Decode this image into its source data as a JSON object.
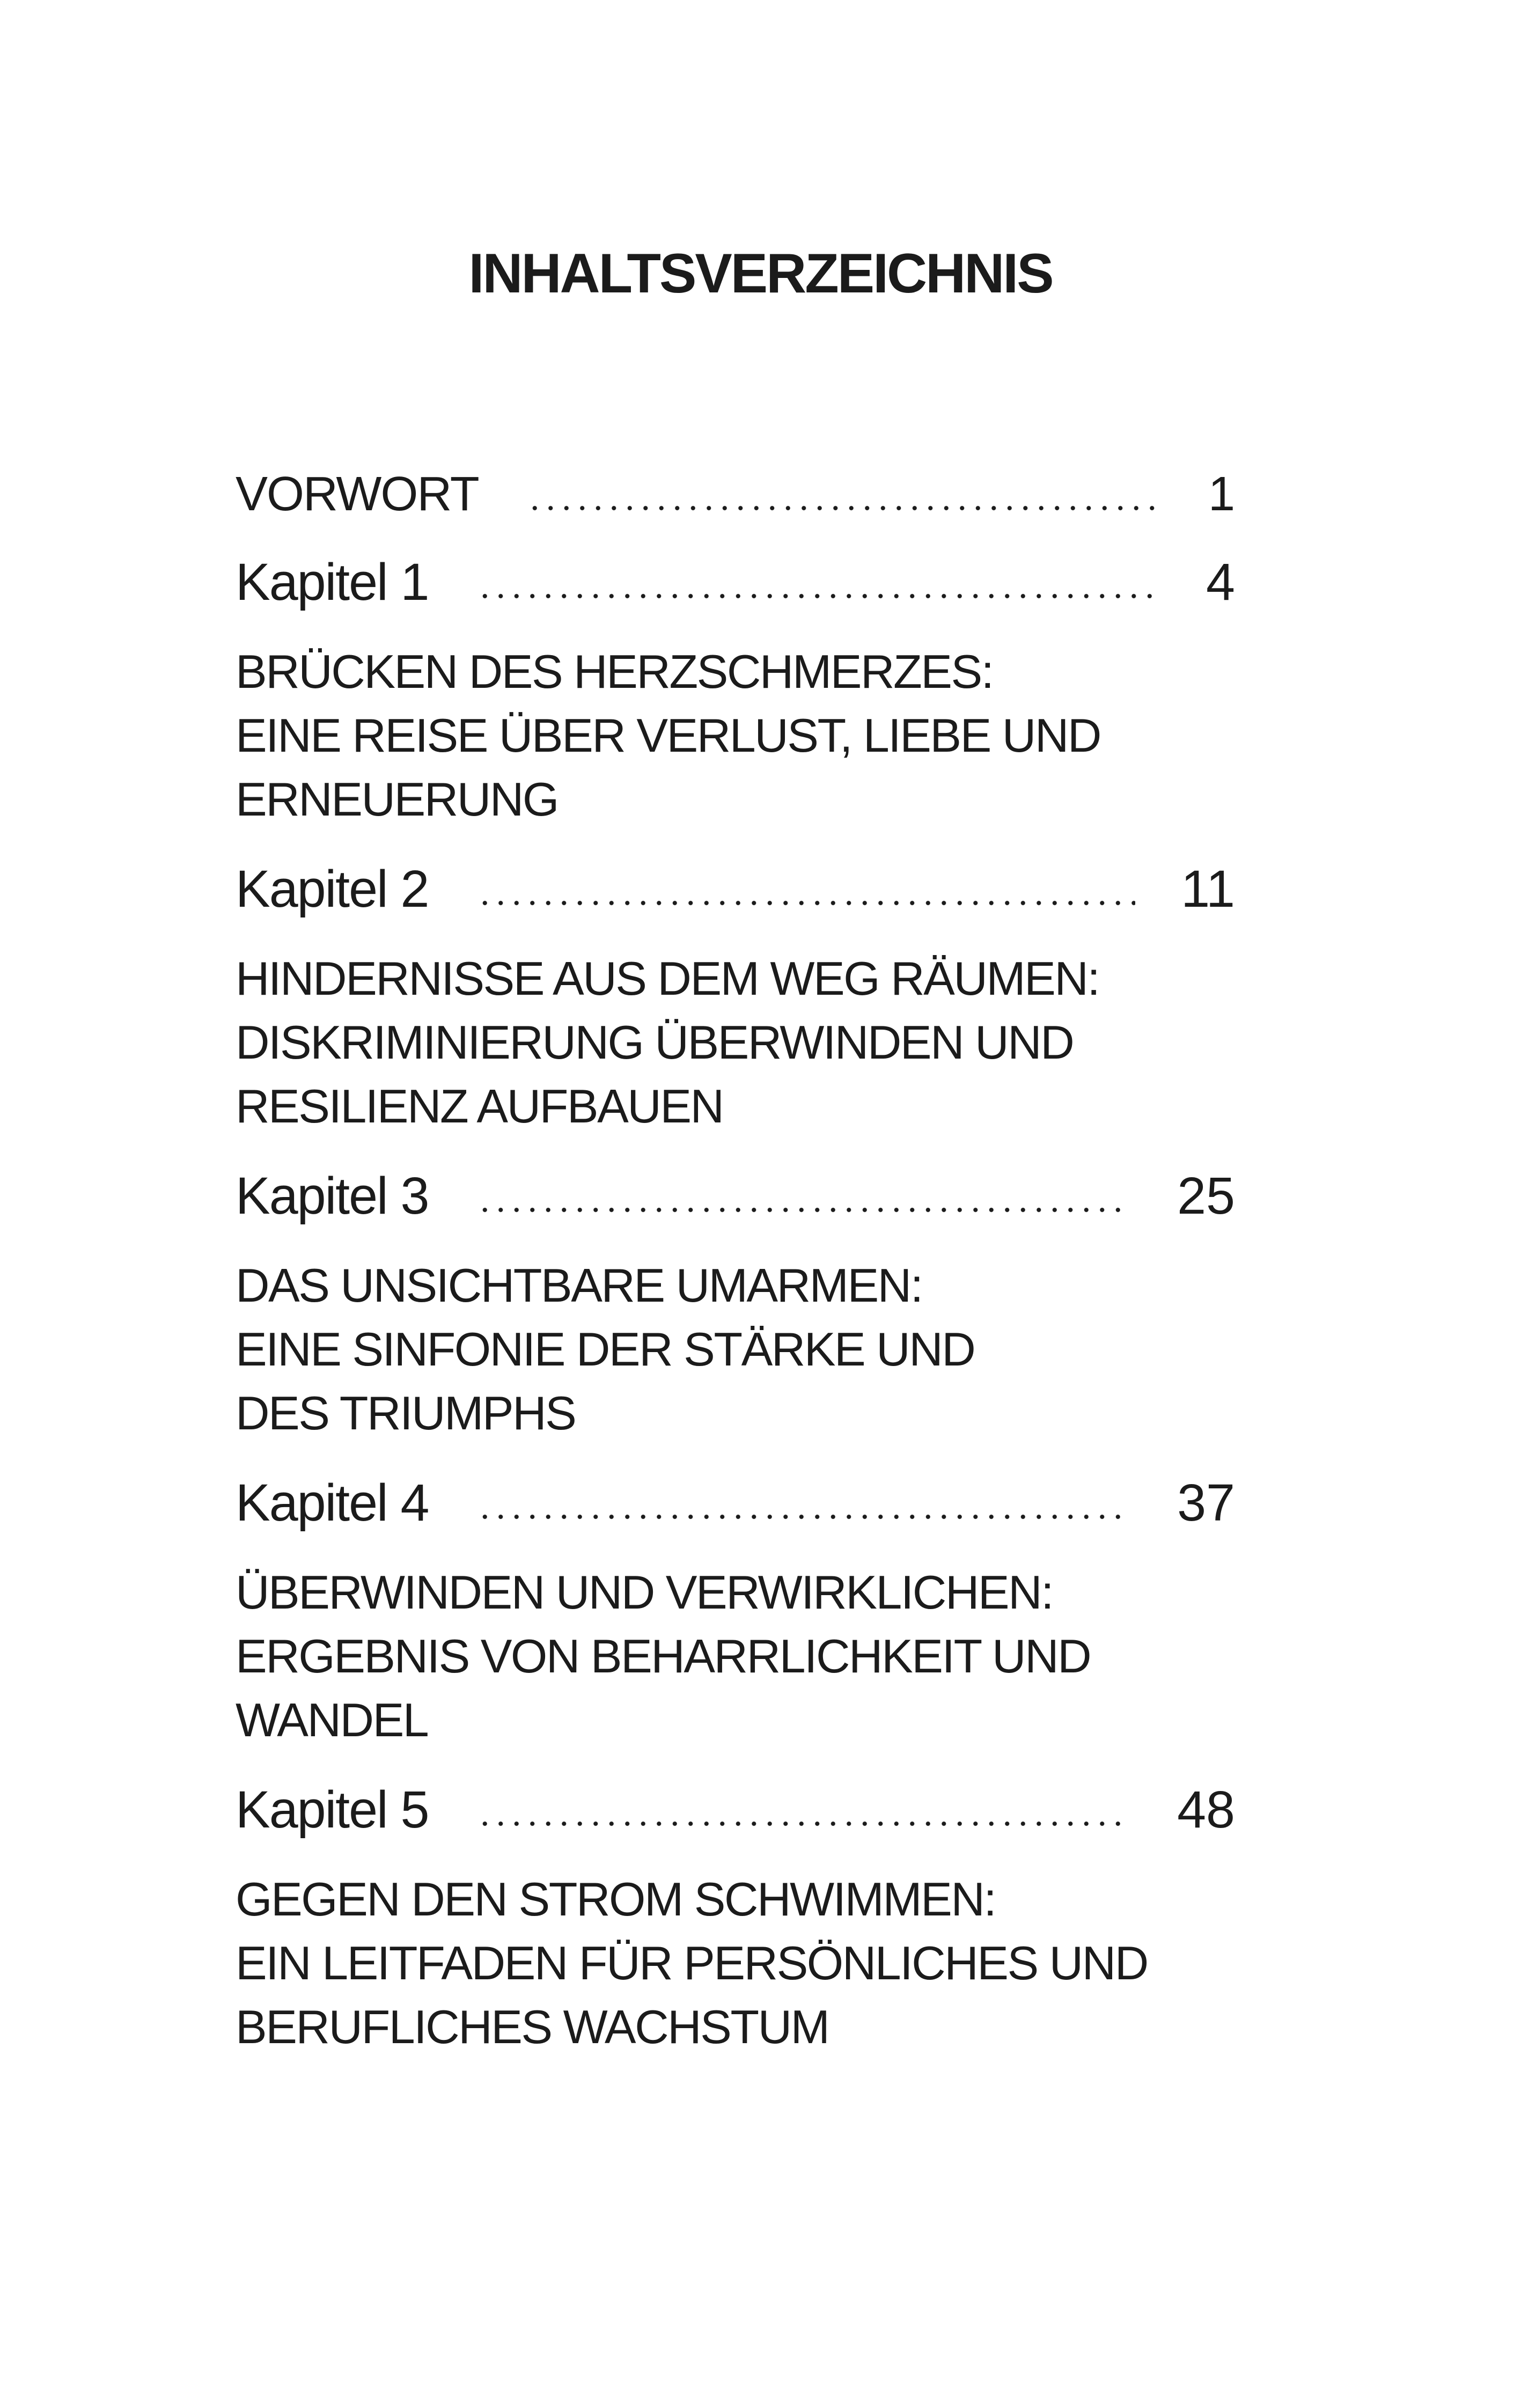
{
  "title": "INHALTSVERZEICHNIS",
  "preface": {
    "label": "VORWORT",
    "page": "1"
  },
  "chapters": [
    {
      "label": "Kapitel 1",
      "page": "4",
      "subtitle": [
        "BRÜCKEN DES HERZSCHMERZES:",
        "EINE REISE ÜBER VERLUST, LIEBE UND",
        "ERNEUERUNG"
      ]
    },
    {
      "label": "Kapitel 2",
      "page": "11",
      "subtitle": [
        "HINDERNISSE AUS DEM WEG RÄUMEN:",
        "DISKRIMINIERUNG ÜBERWINDEN UND",
        "RESILIENZ AUFBAUEN"
      ]
    },
    {
      "label": "Kapitel 3",
      "page": "25",
      "subtitle": [
        "DAS UNSICHTBARE UMARMEN:",
        "EINE SINFONIE DER STÄRKE UND",
        "DES TRIUMPHS"
      ]
    },
    {
      "label": "Kapitel 4",
      "page": "37",
      "subtitle": [
        "ÜBERWINDEN UND VERWIRKLICHEN:",
        "ERGEBNIS VON BEHARRLICHKEIT UND",
        "WANDEL"
      ]
    },
    {
      "label": "Kapitel 5",
      "page": "48",
      "subtitle": [
        "GEGEN DEN STROM SCHWIMMEN:",
        "EIN LEITFADEN FÜR PERSÖNLICHES UND",
        "BERUFLICHES WACHSTUM"
      ]
    }
  ]
}
